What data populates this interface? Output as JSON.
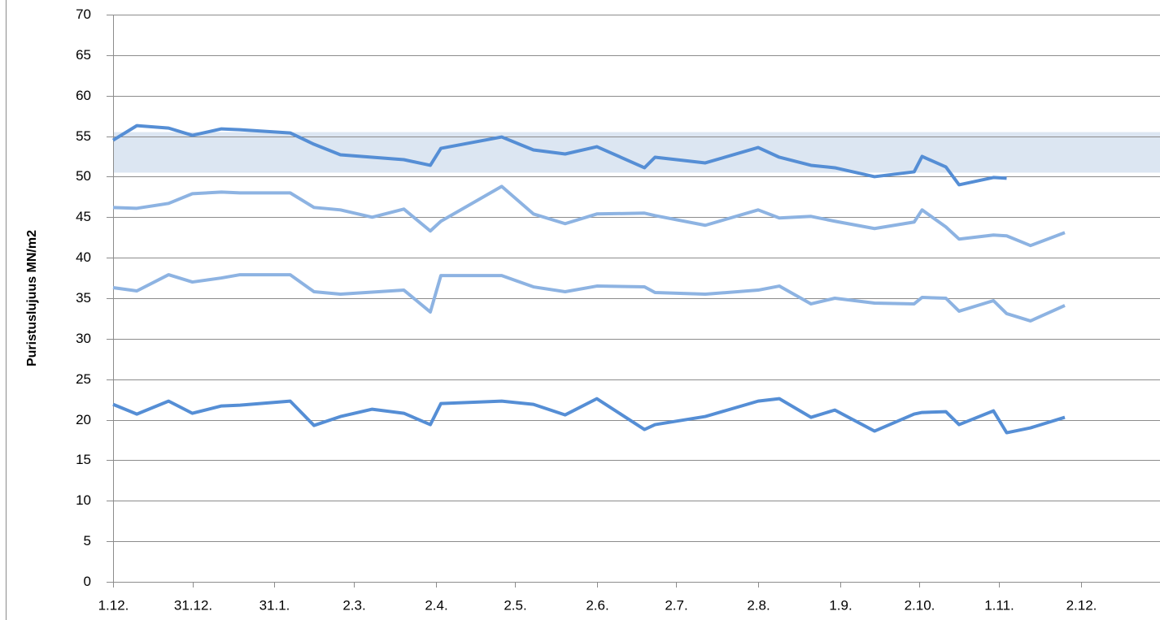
{
  "chart_data": {
    "type": "line",
    "y_label": "Puristuslujuus  MN/m2",
    "xlim": [
      0,
      396
    ],
    "ylim": [
      0,
      70
    ],
    "yticks": [
      0,
      5,
      10,
      15,
      20,
      25,
      30,
      35,
      40,
      45,
      50,
      55,
      60,
      65,
      70
    ],
    "xticks": [
      {
        "value": 0,
        "label": "1.12."
      },
      {
        "value": 30,
        "label": "31.12."
      },
      {
        "value": 61,
        "label": "31.1."
      },
      {
        "value": 91,
        "label": "2.3."
      },
      {
        "value": 122,
        "label": "2.4."
      },
      {
        "value": 152,
        "label": "2.5."
      },
      {
        "value": 183,
        "label": "2.6."
      },
      {
        "value": 213,
        "label": "2.7."
      },
      {
        "value": 244,
        "label": "2.8."
      },
      {
        "value": 275,
        "label": "1.9."
      },
      {
        "value": 305,
        "label": "2.10."
      },
      {
        "value": 335,
        "label": "1.11."
      },
      {
        "value": 366,
        "label": "2.12."
      }
    ],
    "grid": true,
    "band": [
      50.5,
      55.5
    ],
    "band_color": "#dce6f2",
    "series": [
      {
        "color": "#558ed5",
        "x": [
          0,
          9,
          21,
          30,
          41,
          48,
          67,
          76,
          86,
          110,
          120,
          124,
          147,
          159,
          171,
          183,
          201,
          205,
          224,
          244,
          252,
          264,
          273,
          288,
          303,
          306,
          315,
          320,
          333,
          338
        ],
        "values": [
          54.5,
          56.3,
          56.0,
          55.1,
          55.9,
          55.8,
          55.4,
          54.0,
          52.7,
          52.1,
          51.4,
          53.5,
          54.9,
          53.3,
          52.8,
          53.7,
          51.1,
          52.4,
          51.7,
          53.6,
          52.4,
          51.4,
          51.1,
          50.0,
          50.6,
          52.5,
          51.2,
          49.0,
          49.9,
          49.8
        ]
      },
      {
        "color": "#8db3e2",
        "x": [
          0,
          9,
          21,
          30,
          41,
          48,
          67,
          76,
          86,
          98,
          110,
          120,
          124,
          147,
          159,
          171,
          183,
          201,
          205,
          224,
          244,
          252,
          264,
          273,
          288,
          303,
          306,
          315,
          320,
          333,
          338,
          347,
          360
        ],
        "values": [
          46.2,
          46.1,
          46.7,
          47.9,
          48.1,
          48.0,
          48.0,
          46.2,
          45.9,
          45.0,
          46.0,
          43.3,
          44.5,
          48.8,
          45.4,
          44.2,
          45.4,
          45.5,
          45.2,
          44.0,
          45.9,
          44.9,
          45.1,
          44.5,
          43.6,
          44.4,
          45.9,
          43.8,
          42.3,
          42.8,
          42.7,
          41.5,
          43.1
        ]
      },
      {
        "color": "#8db3e2",
        "x": [
          0,
          9,
          21,
          30,
          41,
          48,
          67,
          76,
          86,
          110,
          120,
          124,
          147,
          159,
          171,
          183,
          201,
          205,
          224,
          244,
          252,
          264,
          273,
          288,
          303,
          306,
          315,
          320,
          333,
          338,
          347,
          360
        ],
        "values": [
          36.3,
          35.9,
          37.9,
          37.0,
          37.5,
          37.9,
          37.9,
          35.8,
          35.5,
          36.0,
          33.3,
          37.8,
          37.8,
          36.4,
          35.8,
          36.5,
          36.4,
          35.7,
          35.5,
          36.0,
          36.5,
          34.3,
          35.0,
          34.4,
          34.3,
          35.1,
          35.0,
          33.4,
          34.7,
          33.1,
          32.2,
          34.1
        ]
      },
      {
        "color": "#558ed5",
        "x": [
          0,
          9,
          21,
          30,
          41,
          48,
          67,
          76,
          86,
          98,
          110,
          120,
          124,
          147,
          159,
          171,
          183,
          201,
          205,
          224,
          244,
          252,
          264,
          273,
          288,
          303,
          306,
          315,
          320,
          333,
          338,
          347,
          360
        ],
        "values": [
          21.9,
          20.7,
          22.3,
          20.8,
          21.7,
          21.8,
          22.3,
          19.3,
          20.4,
          21.3,
          20.8,
          19.4,
          22.0,
          22.3,
          21.9,
          20.6,
          22.6,
          18.8,
          19.4,
          20.4,
          22.3,
          22.6,
          20.3,
          21.2,
          18.6,
          20.7,
          20.9,
          21.0,
          19.4,
          21.1,
          18.4,
          19.0,
          20.3
        ]
      }
    ]
  }
}
